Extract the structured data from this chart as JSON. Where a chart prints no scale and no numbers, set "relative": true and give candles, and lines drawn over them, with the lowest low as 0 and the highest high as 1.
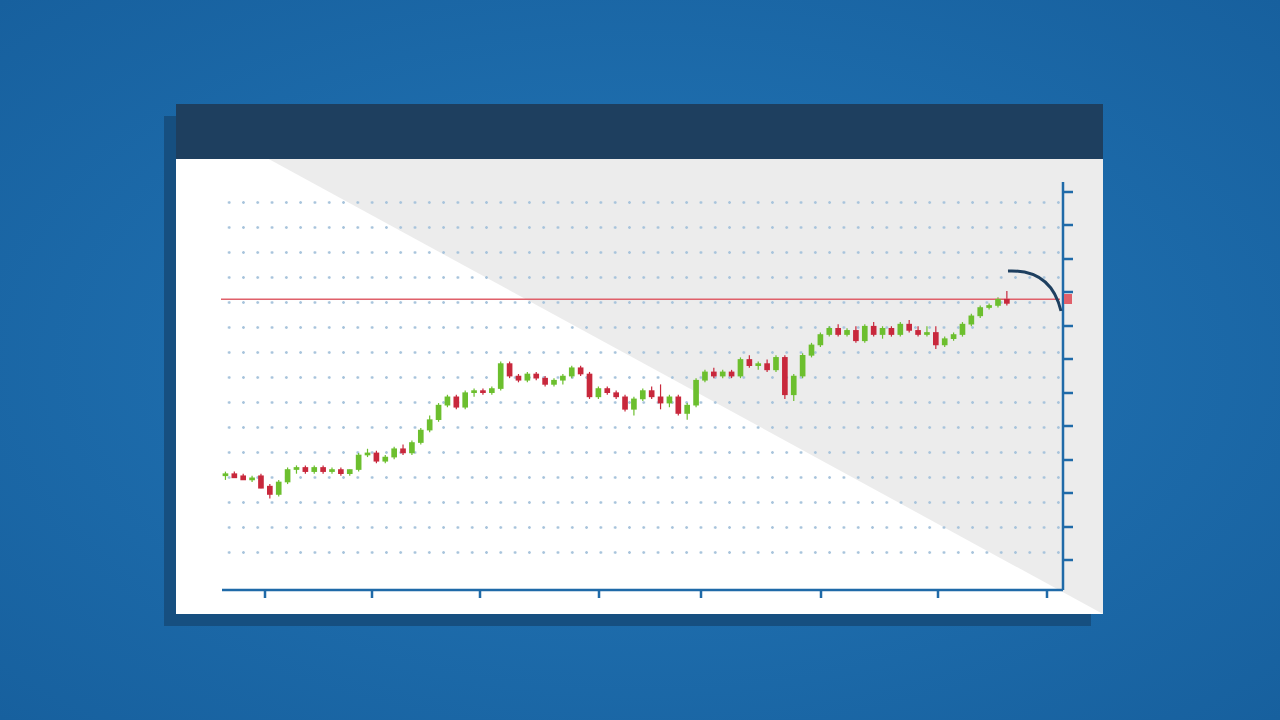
{
  "chart_data": {
    "type": "candlestick",
    "relative": true,
    "categories": [
      null,
      null,
      null,
      null,
      null,
      null,
      null,
      null,
      null,
      null,
      null,
      null,
      null,
      null,
      null,
      null,
      null,
      null,
      null,
      null,
      null,
      null,
      null,
      null,
      null,
      null,
      null,
      null,
      null,
      null,
      null,
      null,
      null,
      null,
      null,
      null,
      null,
      null,
      null,
      null,
      null,
      null,
      null,
      null,
      null,
      null,
      null,
      null,
      null,
      null,
      null,
      null,
      null,
      null,
      null,
      null,
      null,
      null,
      null,
      null,
      null,
      null,
      null,
      null,
      null,
      null,
      null,
      null,
      null,
      null,
      null,
      null,
      null,
      null,
      null,
      null,
      null,
      null,
      null,
      null,
      null,
      null,
      null,
      null,
      null,
      null,
      null,
      null,
      null
    ],
    "ohlc": [
      [
        0.11,
        0.13,
        0.09,
        0.12
      ],
      [
        0.12,
        0.13,
        0.1,
        0.1
      ],
      [
        0.11,
        0.12,
        0.09,
        0.09
      ],
      [
        0.09,
        0.11,
        0.08,
        0.1
      ],
      [
        0.11,
        0.12,
        0.05,
        0.05
      ],
      [
        0.06,
        0.07,
        0.0,
        0.02
      ],
      [
        0.02,
        0.09,
        0.01,
        0.08
      ],
      [
        0.08,
        0.15,
        0.07,
        0.14
      ],
      [
        0.14,
        0.16,
        0.12,
        0.15
      ],
      [
        0.15,
        0.16,
        0.12,
        0.13
      ],
      [
        0.13,
        0.16,
        0.12,
        0.15
      ],
      [
        0.15,
        0.16,
        0.12,
        0.13
      ],
      [
        0.13,
        0.15,
        0.12,
        0.14
      ],
      [
        0.14,
        0.15,
        0.11,
        0.12
      ],
      [
        0.12,
        0.14,
        0.11,
        0.14
      ],
      [
        0.14,
        0.22,
        0.13,
        0.21
      ],
      [
        0.21,
        0.24,
        0.2,
        0.22
      ],
      [
        0.22,
        0.23,
        0.17,
        0.18
      ],
      [
        0.18,
        0.21,
        0.17,
        0.2
      ],
      [
        0.2,
        0.25,
        0.19,
        0.24
      ],
      [
        0.24,
        0.26,
        0.21,
        0.22
      ],
      [
        0.22,
        0.28,
        0.21,
        0.27
      ],
      [
        0.27,
        0.34,
        0.26,
        0.33
      ],
      [
        0.33,
        0.4,
        0.32,
        0.38
      ],
      [
        0.38,
        0.46,
        0.37,
        0.45
      ],
      [
        0.45,
        0.5,
        0.44,
        0.49
      ],
      [
        0.49,
        0.5,
        0.43,
        0.44
      ],
      [
        0.44,
        0.52,
        0.43,
        0.51
      ],
      [
        0.51,
        0.53,
        0.49,
        0.52
      ],
      [
        0.52,
        0.53,
        0.5,
        0.51
      ],
      [
        0.51,
        0.54,
        0.5,
        0.53
      ],
      [
        0.53,
        0.66,
        0.52,
        0.65
      ],
      [
        0.65,
        0.66,
        0.58,
        0.59
      ],
      [
        0.59,
        0.6,
        0.56,
        0.57
      ],
      [
        0.57,
        0.61,
        0.56,
        0.6
      ],
      [
        0.6,
        0.61,
        0.57,
        0.58
      ],
      [
        0.58,
        0.59,
        0.54,
        0.55
      ],
      [
        0.55,
        0.58,
        0.54,
        0.57
      ],
      [
        0.57,
        0.6,
        0.55,
        0.59
      ],
      [
        0.59,
        0.64,
        0.58,
        0.63
      ],
      [
        0.63,
        0.64,
        0.59,
        0.6
      ],
      [
        0.6,
        0.61,
        0.48,
        0.49
      ],
      [
        0.49,
        0.54,
        0.48,
        0.53
      ],
      [
        0.53,
        0.54,
        0.5,
        0.51
      ],
      [
        0.51,
        0.52,
        0.48,
        0.49
      ],
      [
        0.49,
        0.5,
        0.42,
        0.43
      ],
      [
        0.43,
        0.49,
        0.4,
        0.48
      ],
      [
        0.48,
        0.53,
        0.47,
        0.52
      ],
      [
        0.52,
        0.54,
        0.48,
        0.49
      ],
      [
        0.49,
        0.55,
        0.43,
        0.46
      ],
      [
        0.46,
        0.5,
        0.44,
        0.49
      ],
      [
        0.49,
        0.5,
        0.4,
        0.41
      ],
      [
        0.41,
        0.46,
        0.38,
        0.45
      ],
      [
        0.45,
        0.58,
        0.44,
        0.57
      ],
      [
        0.57,
        0.62,
        0.56,
        0.61
      ],
      [
        0.61,
        0.63,
        0.58,
        0.59
      ],
      [
        0.59,
        0.62,
        0.58,
        0.61
      ],
      [
        0.61,
        0.62,
        0.58,
        0.59
      ],
      [
        0.59,
        0.68,
        0.58,
        0.67
      ],
      [
        0.67,
        0.69,
        0.63,
        0.64
      ],
      [
        0.64,
        0.66,
        0.62,
        0.65
      ],
      [
        0.65,
        0.67,
        0.61,
        0.62
      ],
      [
        0.62,
        0.69,
        0.61,
        0.68
      ],
      [
        0.68,
        0.69,
        0.48,
        0.5
      ],
      [
        0.5,
        0.6,
        0.47,
        0.59
      ],
      [
        0.59,
        0.7,
        0.58,
        0.69
      ],
      [
        0.69,
        0.75,
        0.68,
        0.74
      ],
      [
        0.74,
        0.8,
        0.73,
        0.79
      ],
      [
        0.79,
        0.83,
        0.78,
        0.82
      ],
      [
        0.82,
        0.84,
        0.78,
        0.79
      ],
      [
        0.79,
        0.82,
        0.78,
        0.81
      ],
      [
        0.81,
        0.83,
        0.75,
        0.76
      ],
      [
        0.76,
        0.84,
        0.75,
        0.83
      ],
      [
        0.83,
        0.85,
        0.78,
        0.79
      ],
      [
        0.79,
        0.83,
        0.77,
        0.82
      ],
      [
        0.82,
        0.83,
        0.78,
        0.79
      ],
      [
        0.79,
        0.85,
        0.78,
        0.84
      ],
      [
        0.84,
        0.86,
        0.8,
        0.81
      ],
      [
        0.81,
        0.83,
        0.78,
        0.79
      ],
      [
        0.79,
        0.83,
        0.78,
        0.8
      ],
      [
        0.8,
        0.83,
        0.72,
        0.74
      ],
      [
        0.74,
        0.78,
        0.73,
        0.77
      ],
      [
        0.77,
        0.8,
        0.76,
        0.79
      ],
      [
        0.79,
        0.85,
        0.78,
        0.84
      ],
      [
        0.84,
        0.89,
        0.83,
        0.88
      ],
      [
        0.88,
        0.93,
        0.87,
        0.92
      ],
      [
        0.92,
        0.94,
        0.91,
        0.93
      ],
      [
        0.93,
        0.97,
        0.92,
        0.96
      ],
      [
        0.96,
        1.0,
        0.93,
        0.94
      ]
    ],
    "colors": [
      "#6cbf2e",
      "#c8283c",
      "#c8283c",
      "#6cbf2e",
      "#c8283c",
      "#c8283c",
      "#6cbf2e",
      "#6cbf2e",
      "#6cbf2e",
      "#c8283c",
      "#6cbf2e",
      "#c8283c",
      "#6cbf2e",
      "#c8283c",
      "#6cbf2e",
      "#6cbf2e",
      "#6cbf2e",
      "#c8283c",
      "#6cbf2e",
      "#6cbf2e",
      "#c8283c",
      "#6cbf2e",
      "#6cbf2e",
      "#6cbf2e",
      "#6cbf2e",
      "#6cbf2e",
      "#c8283c",
      "#6cbf2e",
      "#6cbf2e",
      "#c8283c",
      "#6cbf2e",
      "#6cbf2e",
      "#c8283c",
      "#c8283c",
      "#6cbf2e",
      "#c8283c",
      "#c8283c",
      "#6cbf2e",
      "#6cbf2e",
      "#6cbf2e",
      "#c8283c",
      "#c8283c",
      "#6cbf2e",
      "#c8283c",
      "#c8283c",
      "#c8283c",
      "#6cbf2e",
      "#6cbf2e",
      "#c8283c",
      "#c8283c",
      "#6cbf2e",
      "#c8283c",
      "#6cbf2e",
      "#6cbf2e",
      "#6cbf2e",
      "#c8283c",
      "#6cbf2e",
      "#c8283c",
      "#6cbf2e",
      "#c8283c",
      "#6cbf2e",
      "#c8283c",
      "#6cbf2e",
      "#c8283c",
      "#6cbf2e",
      "#6cbf2e",
      "#6cbf2e",
      "#6cbf2e",
      "#6cbf2e",
      "#c8283c",
      "#6cbf2e",
      "#c8283c",
      "#6cbf2e",
      "#c8283c",
      "#6cbf2e",
      "#c8283c",
      "#6cbf2e",
      "#c8283c",
      "#c8283c",
      "#6cbf2e",
      "#c8283c",
      "#6cbf2e",
      "#6cbf2e",
      "#6cbf2e",
      "#6cbf2e",
      "#6cbf2e",
      "#6cbf2e",
      "#6cbf2e",
      "#c8283c"
    ],
    "ref_lines": [
      {
        "axis": "y",
        "value": 0.96,
        "color": "#e0606a"
      }
    ]
  }
}
